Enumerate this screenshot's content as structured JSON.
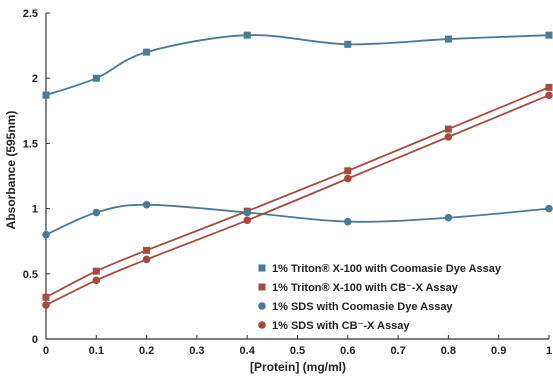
{
  "chart_data": {
    "type": "line",
    "xlabel": "[Protein] (mg/ml)",
    "ylabel": "Absorbance (595nm)",
    "xlim": [
      0,
      1
    ],
    "ylim": [
      0,
      2.5
    ],
    "x_ticks": [
      "0",
      "0.1",
      "0.2",
      "0.3",
      "0.4",
      "0.5",
      "0.6",
      "0.7",
      "0.8",
      "0.9",
      "1"
    ],
    "y_ticks": [
      "0",
      "0.5",
      "1",
      "1.5",
      "2",
      "2.5"
    ],
    "grid": false,
    "legend_position": "bottom-right",
    "series": [
      {
        "name": "1% Triton® X-100 with Coomasie Dye Assay",
        "marker": "square",
        "color": "#4a7a96",
        "x": [
          0,
          0.1,
          0.2,
          0.4,
          0.6,
          0.8,
          1
        ],
        "y": [
          1.87,
          2.0,
          2.2,
          2.33,
          2.26,
          2.3,
          2.33
        ]
      },
      {
        "name": "1% Triton® X-100 with CB⁻-X Assay",
        "marker": "square",
        "color": "#a84a3e",
        "x": [
          0,
          0.1,
          0.2,
          0.4,
          0.6,
          0.8,
          1
        ],
        "y": [
          0.32,
          0.52,
          0.68,
          0.98,
          1.29,
          1.61,
          1.93
        ]
      },
      {
        "name": "1% SDS with Coomasie Dye Assay",
        "marker": "circle",
        "color": "#4a7a96",
        "x": [
          0,
          0.1,
          0.2,
          0.4,
          0.6,
          0.8,
          1
        ],
        "y": [
          0.8,
          0.97,
          1.03,
          0.97,
          0.9,
          0.93,
          1.0
        ]
      },
      {
        "name": "1% SDS with CB⁻-X Assay",
        "marker": "circle",
        "color": "#a84a3e",
        "x": [
          0,
          0.1,
          0.2,
          0.4,
          0.6,
          0.8,
          1
        ],
        "y": [
          0.26,
          0.45,
          0.61,
          0.91,
          1.23,
          1.55,
          1.87
        ]
      }
    ]
  }
}
